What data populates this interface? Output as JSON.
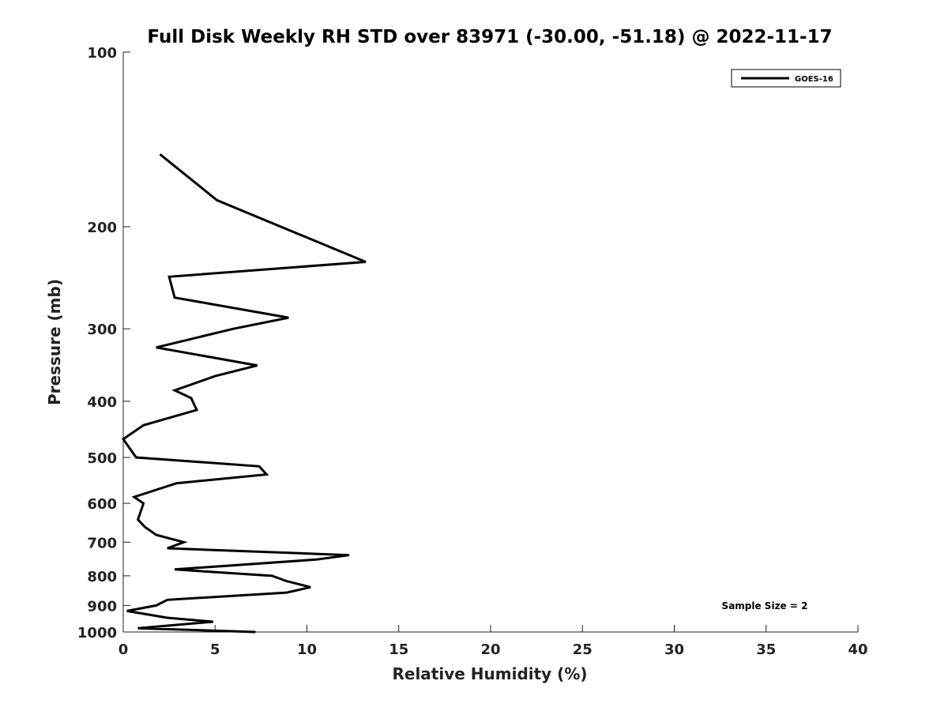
{
  "chart_data": {
    "type": "line",
    "title": "Full Disk Weekly RH STD over 83971 (-30.00, -51.18) @ 2022-11-17",
    "xlabel": "Relative Humidity (%)",
    "ylabel": "Pressure (mb)",
    "xlim": [
      0,
      40
    ],
    "ylim": [
      100,
      1000
    ],
    "y_scale": "log",
    "y_reversed": true,
    "grid": false,
    "legend_position": "top-right",
    "x_ticks": [
      "0",
      "5",
      "10",
      "15",
      "20",
      "25",
      "30",
      "35",
      "40"
    ],
    "y_ticks": [
      "100",
      "200",
      "300",
      "400",
      "500",
      "600",
      "700",
      "800",
      "900",
      "1000"
    ],
    "series": [
      {
        "name": "GOES-16",
        "color": "#000000",
        "points": [
          {
            "x": 2.0,
            "y": 150
          },
          {
            "x": 5.1,
            "y": 180
          },
          {
            "x": 13.2,
            "y": 230
          },
          {
            "x": 2.5,
            "y": 244
          },
          {
            "x": 2.8,
            "y": 265
          },
          {
            "x": 9.0,
            "y": 287
          },
          {
            "x": 6.0,
            "y": 300
          },
          {
            "x": 1.8,
            "y": 323
          },
          {
            "x": 7.3,
            "y": 347
          },
          {
            "x": 5.0,
            "y": 362
          },
          {
            "x": 2.8,
            "y": 383
          },
          {
            "x": 3.7,
            "y": 395
          },
          {
            "x": 4.0,
            "y": 414
          },
          {
            "x": 1.1,
            "y": 440
          },
          {
            "x": 0.0,
            "y": 465
          },
          {
            "x": 0.7,
            "y": 500
          },
          {
            "x": 7.4,
            "y": 518
          },
          {
            "x": 7.8,
            "y": 535
          },
          {
            "x": 2.9,
            "y": 554
          },
          {
            "x": 0.6,
            "y": 585
          },
          {
            "x": 1.1,
            "y": 600
          },
          {
            "x": 0.8,
            "y": 640
          },
          {
            "x": 1.2,
            "y": 660
          },
          {
            "x": 1.8,
            "y": 680
          },
          {
            "x": 3.3,
            "y": 700
          },
          {
            "x": 2.4,
            "y": 717
          },
          {
            "x": 12.3,
            "y": 737
          },
          {
            "x": 10.5,
            "y": 750
          },
          {
            "x": 2.8,
            "y": 780
          },
          {
            "x": 8.1,
            "y": 800
          },
          {
            "x": 8.9,
            "y": 817
          },
          {
            "x": 10.2,
            "y": 837
          },
          {
            "x": 8.9,
            "y": 855
          },
          {
            "x": 2.4,
            "y": 880
          },
          {
            "x": 1.8,
            "y": 900
          },
          {
            "x": 0.2,
            "y": 920
          },
          {
            "x": 2.4,
            "y": 945
          },
          {
            "x": 4.9,
            "y": 960
          },
          {
            "x": 0.8,
            "y": 985
          },
          {
            "x": 7.2,
            "y": 1000
          }
        ]
      }
    ],
    "annotations": [
      "Sample Size = 2"
    ]
  }
}
